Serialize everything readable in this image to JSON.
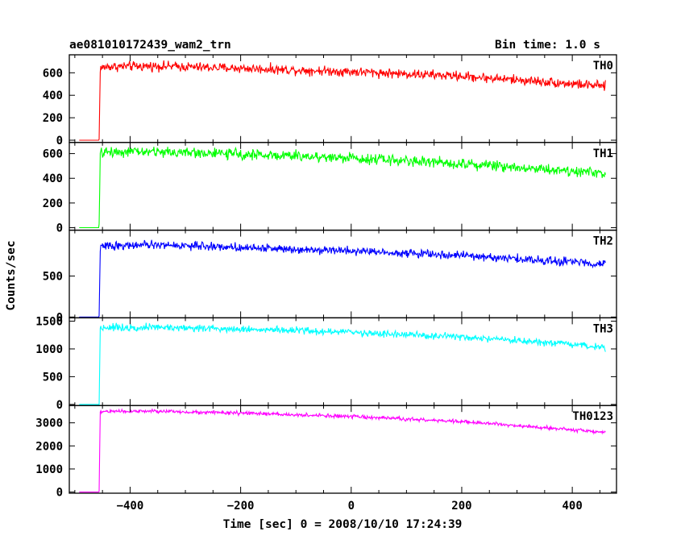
{
  "chart_data": {
    "type": "line",
    "title": "ae081010172439_wam2_trn",
    "subtitle": "Bin time: 1.0 s",
    "xlabel": "Time [sec] 0 = 2008/10/10 17:24:39",
    "ylabel": "Counts/sec",
    "xlim": [
      -510,
      480
    ],
    "x_ticks": [
      -400,
      -200,
      0,
      200,
      400
    ],
    "x_tick_labels": [
      "−400",
      "−200",
      "0",
      "200",
      "400"
    ],
    "trigger_time": -456,
    "x_start": -492,
    "x_end": 460,
    "series": [
      {
        "name": "TH0",
        "color": "#ff0000",
        "ylim": [
          -20,
          760
        ],
        "y_ticks": [
          0,
          200,
          400,
          600
        ],
        "y_tick_labels": [
          "0",
          "200",
          "400",
          "600"
        ],
        "pre_level": 0,
        "noise": 30,
        "profile": [
          [
            -456,
            0
          ],
          [
            -454,
            640
          ],
          [
            -440,
            655
          ],
          [
            -350,
            660
          ],
          [
            -200,
            640
          ],
          [
            0,
            610
          ],
          [
            200,
            570
          ],
          [
            350,
            520
          ],
          [
            460,
            480
          ]
        ]
      },
      {
        "name": "TH1",
        "color": "#00ff00",
        "ylim": [
          -20,
          690
        ],
        "y_ticks": [
          0,
          200,
          400,
          600
        ],
        "y_tick_labels": [
          "0",
          "200",
          "400",
          "600"
        ],
        "pre_level": 0,
        "noise": 30,
        "profile": [
          [
            -456,
            0
          ],
          [
            -454,
            600
          ],
          [
            -440,
            615
          ],
          [
            -350,
            615
          ],
          [
            -200,
            595
          ],
          [
            0,
            565
          ],
          [
            200,
            520
          ],
          [
            350,
            475
          ],
          [
            460,
            440
          ]
        ]
      },
      {
        "name": "TH2",
        "color": "#0000ff",
        "ylim": [
          -10,
          1060
        ],
        "y_ticks": [
          0,
          500
        ],
        "y_tick_labels": [
          "0",
          "500"
        ],
        "pre_level": 0,
        "noise": 35,
        "profile": [
          [
            -456,
            0
          ],
          [
            -454,
            850
          ],
          [
            -440,
            870
          ],
          [
            -350,
            880
          ],
          [
            -200,
            850
          ],
          [
            0,
            810
          ],
          [
            200,
            750
          ],
          [
            350,
            690
          ],
          [
            460,
            650
          ]
        ]
      },
      {
        "name": "TH3",
        "color": "#00ffff",
        "ylim": [
          -20,
          1560
        ],
        "y_ticks": [
          0,
          500,
          1000,
          1500
        ],
        "y_tick_labels": [
          "0",
          "500",
          "1000",
          "1500"
        ],
        "pre_level": 0,
        "noise": 45,
        "profile": [
          [
            -456,
            0
          ],
          [
            -454,
            1380
          ],
          [
            -440,
            1390
          ],
          [
            -350,
            1390
          ],
          [
            -200,
            1360
          ],
          [
            0,
            1300
          ],
          [
            200,
            1210
          ],
          [
            350,
            1110
          ],
          [
            460,
            1030
          ]
        ]
      },
      {
        "name": "TH0123",
        "color": "#ff00ff",
        "ylim": [
          -50,
          3750
        ],
        "y_ticks": [
          0,
          1000,
          2000,
          3000
        ],
        "y_tick_labels": [
          "0",
          "1000",
          "2000",
          "3000"
        ],
        "pre_level": 0,
        "noise": 55,
        "profile": [
          [
            -456,
            0
          ],
          [
            -454,
            3480
          ],
          [
            -440,
            3500
          ],
          [
            -350,
            3500
          ],
          [
            -200,
            3420
          ],
          [
            0,
            3270
          ],
          [
            200,
            3050
          ],
          [
            350,
            2800
          ],
          [
            460,
            2580
          ]
        ]
      }
    ]
  }
}
